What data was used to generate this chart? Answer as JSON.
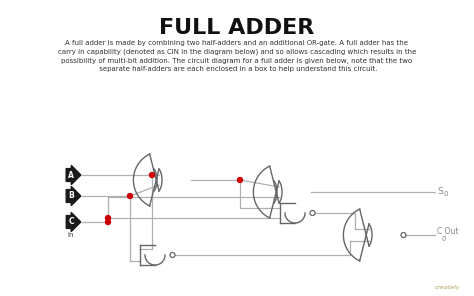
{
  "title": "FULL ADDER",
  "description": "A full adder is made by combining two half-adders and an additional OR-gate. A full adder has the\ncarry in capability (denoted as CIN in the diagram below) and so allows cascading which results in the\npossibility of multi-bit addition. The circuit diagram for a full adder is given below, note that the two\n separate half-adders are each enclosed in a box to help understand this circuit.",
  "bg_color": "#ffffff",
  "title_color": "#111111",
  "text_color": "#333333",
  "wire_color": "#b0b0b0",
  "gate_color": "#666666",
  "gate_lw": 1.0,
  "dot_color": "#cc0000",
  "label_bg": "#1a1a1a",
  "label_fg": "#ffffff",
  "watermark": "creately",
  "fig_w": 4.74,
  "fig_h": 2.96,
  "dpi": 100
}
